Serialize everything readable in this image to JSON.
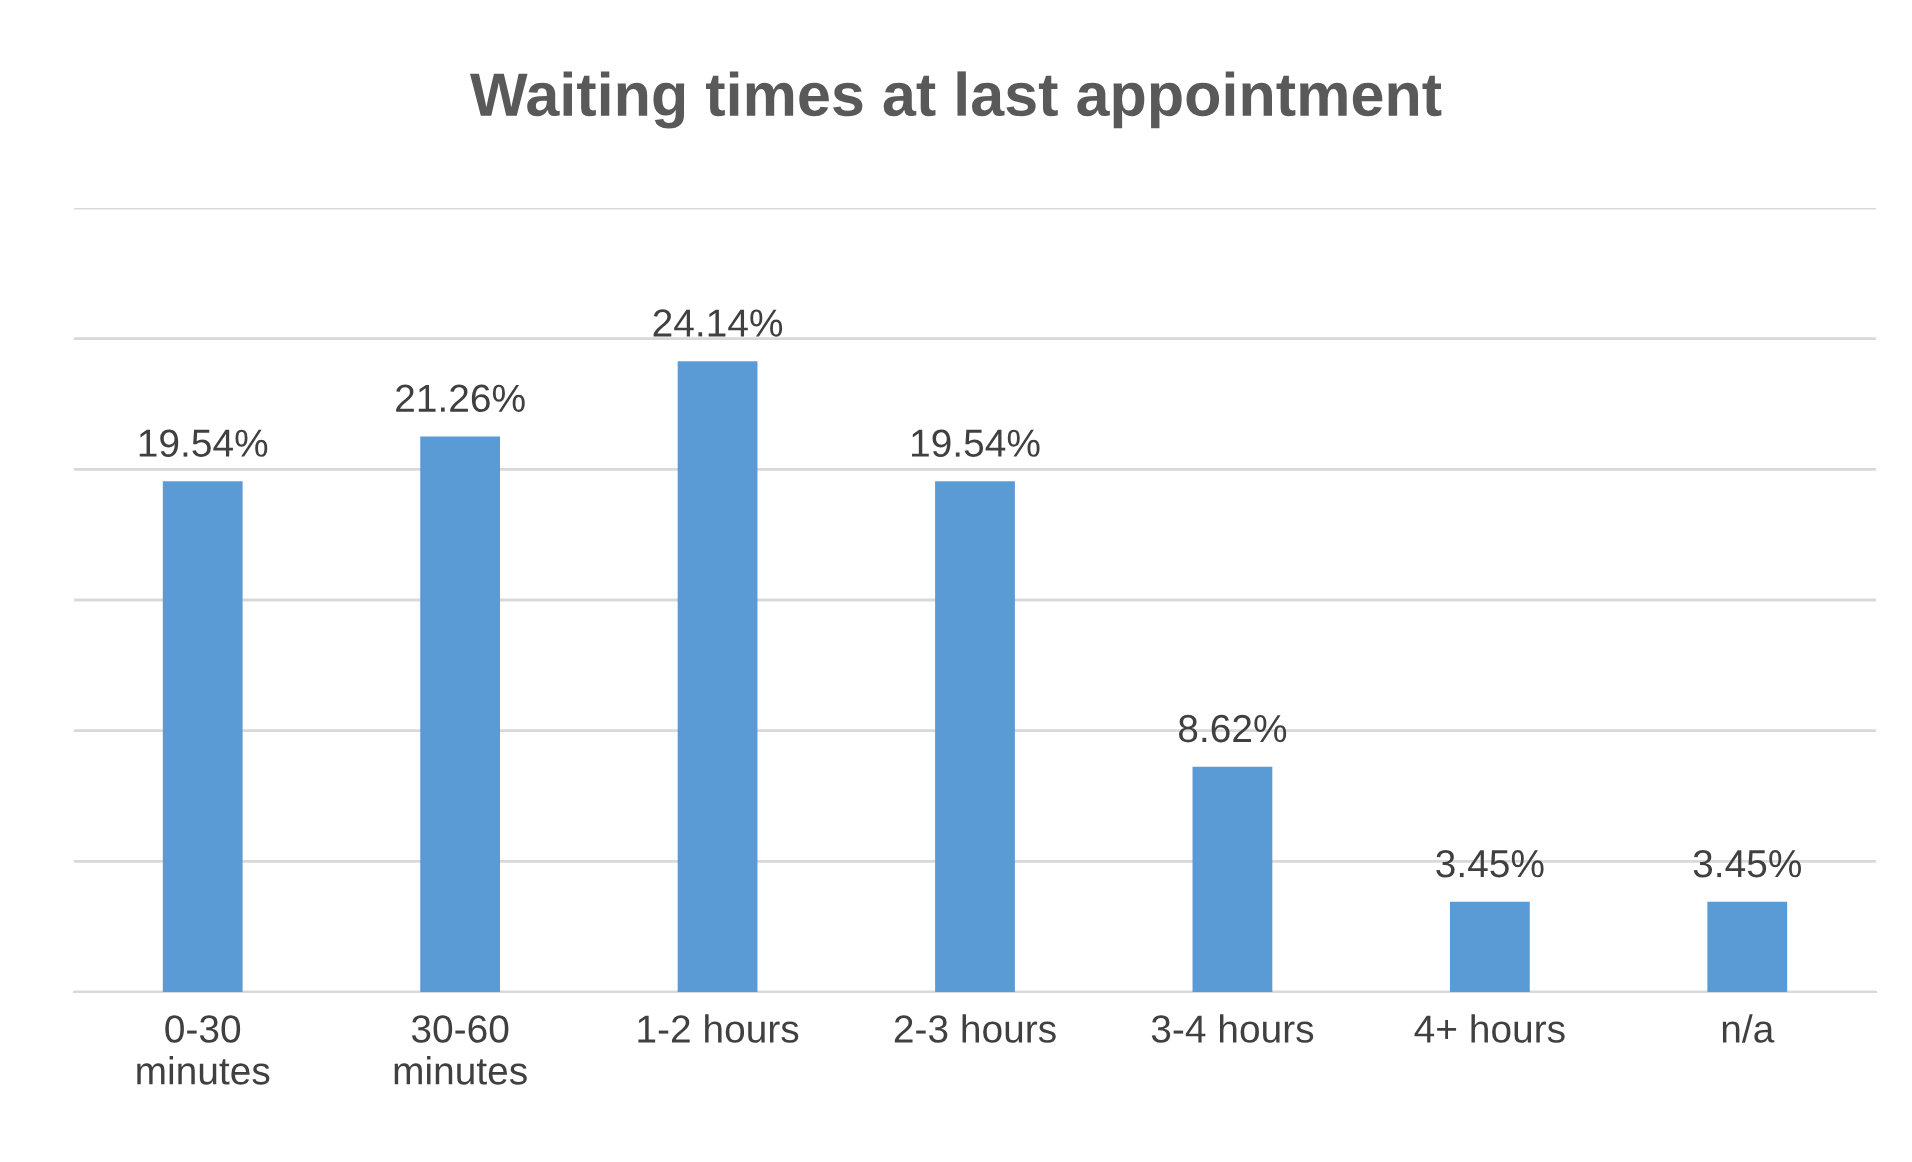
{
  "chart_data": {
    "type": "bar",
    "title": "Waiting times at last appointment",
    "categories": [
      "0-30\nminutes",
      "30-60\nminutes",
      "1-2 hours",
      "2-3 hours",
      "3-4 hours",
      "4+ hours",
      "n/a"
    ],
    "values": [
      19.54,
      21.26,
      24.14,
      19.54,
      8.62,
      3.45,
      3.45
    ],
    "value_labels": [
      "19.54%",
      "21.26%",
      "24.14%",
      "19.54%",
      "8.62%",
      "3.45%",
      "3.45%"
    ],
    "color": "#5b9bd5",
    "ylim": [
      0,
      30
    ],
    "yticks": [
      {
        "value": 0,
        "label": null
      },
      {
        "value": 5,
        "label": null
      },
      {
        "value": 10,
        "label": null
      },
      {
        "value": 15,
        "label": null
      },
      {
        "value": 20,
        "label": null
      },
      {
        "value": 25,
        "label": null
      },
      {
        "value": 30,
        "label": null
      }
    ],
    "tick_labels": "x",
    "grid": "y",
    "legend": false
  }
}
